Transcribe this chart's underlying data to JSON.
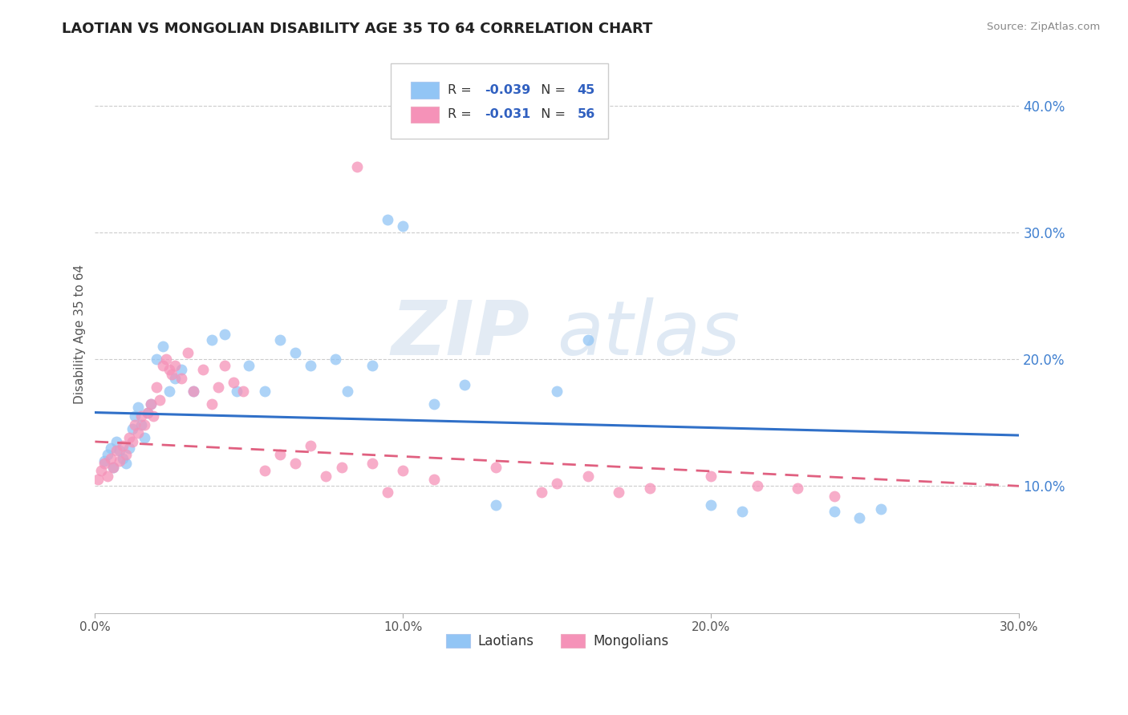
{
  "title": "LAOTIAN VS MONGOLIAN DISABILITY AGE 35 TO 64 CORRELATION CHART",
  "source": "Source: ZipAtlas.com",
  "ylabel": "Disability Age 35 to 64",
  "xlim": [
    0.0,
    0.3
  ],
  "ylim": [
    0.0,
    0.44
  ],
  "xtick_labels": [
    "0.0%",
    "10.0%",
    "20.0%",
    "30.0%"
  ],
  "xtick_vals": [
    0.0,
    0.1,
    0.2,
    0.3
  ],
  "ytick_labels": [
    "10.0%",
    "20.0%",
    "30.0%",
    "40.0%"
  ],
  "ytick_vals": [
    0.1,
    0.2,
    0.3,
    0.4
  ],
  "grid_lines": [
    0.1,
    0.2,
    0.3,
    0.4
  ],
  "laotian_color": "#92c5f5",
  "mongolian_color": "#f592b8",
  "legend_laotian_R": "-0.039",
  "legend_laotian_N": "45",
  "legend_mongolian_R": "-0.031",
  "legend_mongolian_N": "56",
  "watermark_zip": "ZIP",
  "watermark_atlas": "atlas",
  "laotian_label": "Laotians",
  "mongolian_label": "Mongolians",
  "laotian_x": [
    0.003,
    0.004,
    0.005,
    0.006,
    0.007,
    0.008,
    0.009,
    0.01,
    0.011,
    0.012,
    0.013,
    0.014,
    0.015,
    0.016,
    0.017,
    0.018,
    0.02,
    0.022,
    0.024,
    0.026,
    0.028,
    0.032,
    0.038,
    0.042,
    0.046,
    0.05,
    0.055,
    0.06,
    0.065,
    0.07,
    0.078,
    0.082,
    0.09,
    0.095,
    0.1,
    0.11,
    0.12,
    0.13,
    0.15,
    0.16,
    0.2,
    0.21,
    0.24,
    0.248,
    0.255
  ],
  "laotian_y": [
    0.12,
    0.125,
    0.13,
    0.115,
    0.135,
    0.128,
    0.122,
    0.118,
    0.13,
    0.145,
    0.155,
    0.162,
    0.148,
    0.138,
    0.158,
    0.165,
    0.2,
    0.21,
    0.175,
    0.185,
    0.192,
    0.175,
    0.215,
    0.22,
    0.175,
    0.195,
    0.175,
    0.215,
    0.205,
    0.195,
    0.2,
    0.175,
    0.195,
    0.31,
    0.305,
    0.165,
    0.18,
    0.085,
    0.175,
    0.215,
    0.085,
    0.08,
    0.08,
    0.075,
    0.082
  ],
  "mongolian_x": [
    0.001,
    0.002,
    0.003,
    0.004,
    0.005,
    0.006,
    0.007,
    0.008,
    0.009,
    0.01,
    0.011,
    0.012,
    0.013,
    0.014,
    0.015,
    0.016,
    0.017,
    0.018,
    0.019,
    0.02,
    0.021,
    0.022,
    0.023,
    0.024,
    0.025,
    0.026,
    0.028,
    0.03,
    0.032,
    0.035,
    0.038,
    0.04,
    0.042,
    0.045,
    0.048,
    0.055,
    0.06,
    0.065,
    0.07,
    0.075,
    0.08,
    0.085,
    0.09,
    0.095,
    0.1,
    0.11,
    0.13,
    0.145,
    0.15,
    0.16,
    0.17,
    0.18,
    0.2,
    0.215,
    0.228,
    0.24
  ],
  "mongolian_y": [
    0.105,
    0.112,
    0.118,
    0.108,
    0.122,
    0.115,
    0.128,
    0.12,
    0.132,
    0.125,
    0.138,
    0.135,
    0.148,
    0.142,
    0.155,
    0.148,
    0.158,
    0.165,
    0.155,
    0.178,
    0.168,
    0.195,
    0.2,
    0.192,
    0.188,
    0.195,
    0.185,
    0.205,
    0.175,
    0.192,
    0.165,
    0.178,
    0.195,
    0.182,
    0.175,
    0.112,
    0.125,
    0.118,
    0.132,
    0.108,
    0.115,
    0.352,
    0.118,
    0.095,
    0.112,
    0.105,
    0.115,
    0.095,
    0.102,
    0.108,
    0.095,
    0.098,
    0.108,
    0.1,
    0.098,
    0.092
  ],
  "lao_line_x0": 0.0,
  "lao_line_x1": 0.3,
  "lao_line_y0": 0.158,
  "lao_line_y1": 0.14,
  "mong_line_x0": 0.0,
  "mong_line_x1": 0.3,
  "mong_line_y0": 0.135,
  "mong_line_y1": 0.1
}
